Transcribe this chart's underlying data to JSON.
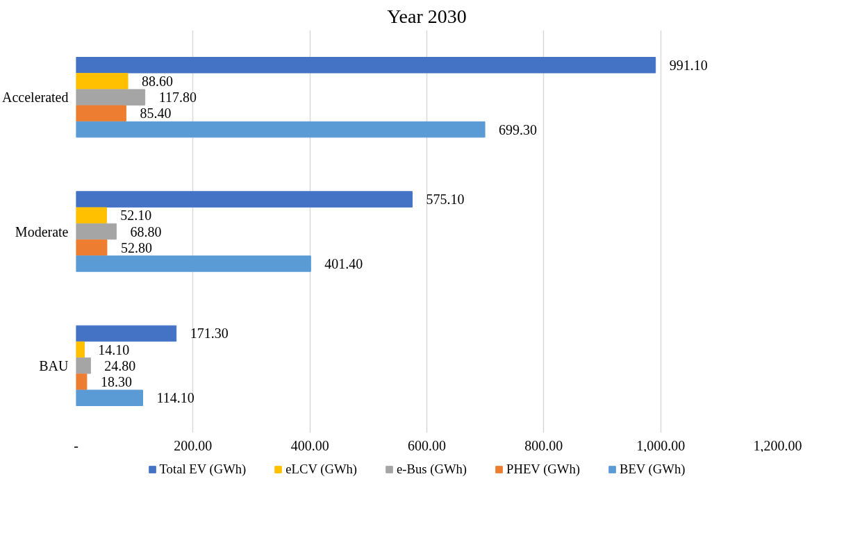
{
  "chart_data": {
    "type": "bar",
    "orientation": "horizontal",
    "title": "Year 2030",
    "categories": [
      "Accelerated",
      "Moderate",
      "BAU"
    ],
    "series": [
      {
        "name": "Total EV (GWh)",
        "color": "#4472c4",
        "values": [
          991.1,
          575.1,
          171.3
        ],
        "value_labels": [
          "991.10",
          "575.10",
          "171.30"
        ]
      },
      {
        "name": "eLCV (GWh)",
        "color": "#ffc000",
        "values": [
          88.6,
          52.1,
          14.1
        ],
        "value_labels": [
          "88.60",
          "52.10",
          "14.10"
        ]
      },
      {
        "name": "e-Bus (GWh)",
        "color": "#a5a5a5",
        "values": [
          117.8,
          68.8,
          24.8
        ],
        "value_labels": [
          "117.80",
          "68.80",
          "24.80"
        ]
      },
      {
        "name": "PHEV (GWh)",
        "color": "#ed7d31",
        "values": [
          85.4,
          52.8,
          18.3
        ],
        "value_labels": [
          "85.40",
          "52.80",
          "18.30"
        ]
      },
      {
        "name": "BEV (GWh)",
        "color": "#5b9bd5",
        "values": [
          699.3,
          401.4,
          114.1
        ],
        "value_labels": [
          "699.30",
          "401.40",
          "114.10"
        ]
      }
    ],
    "xlim": [
      0,
      1200
    ],
    "xticks": [
      {
        "value": 0,
        "label": "-"
      },
      {
        "value": 200,
        "label": "200.00"
      },
      {
        "value": 400,
        "label": "400.00"
      },
      {
        "value": 600,
        "label": "600.00"
      },
      {
        "value": 800,
        "label": "800.00"
      },
      {
        "value": 1000,
        "label": "1,000.00"
      },
      {
        "value": 1200,
        "label": "1,200.00"
      }
    ],
    "grid": "x",
    "legend": "bottom"
  }
}
